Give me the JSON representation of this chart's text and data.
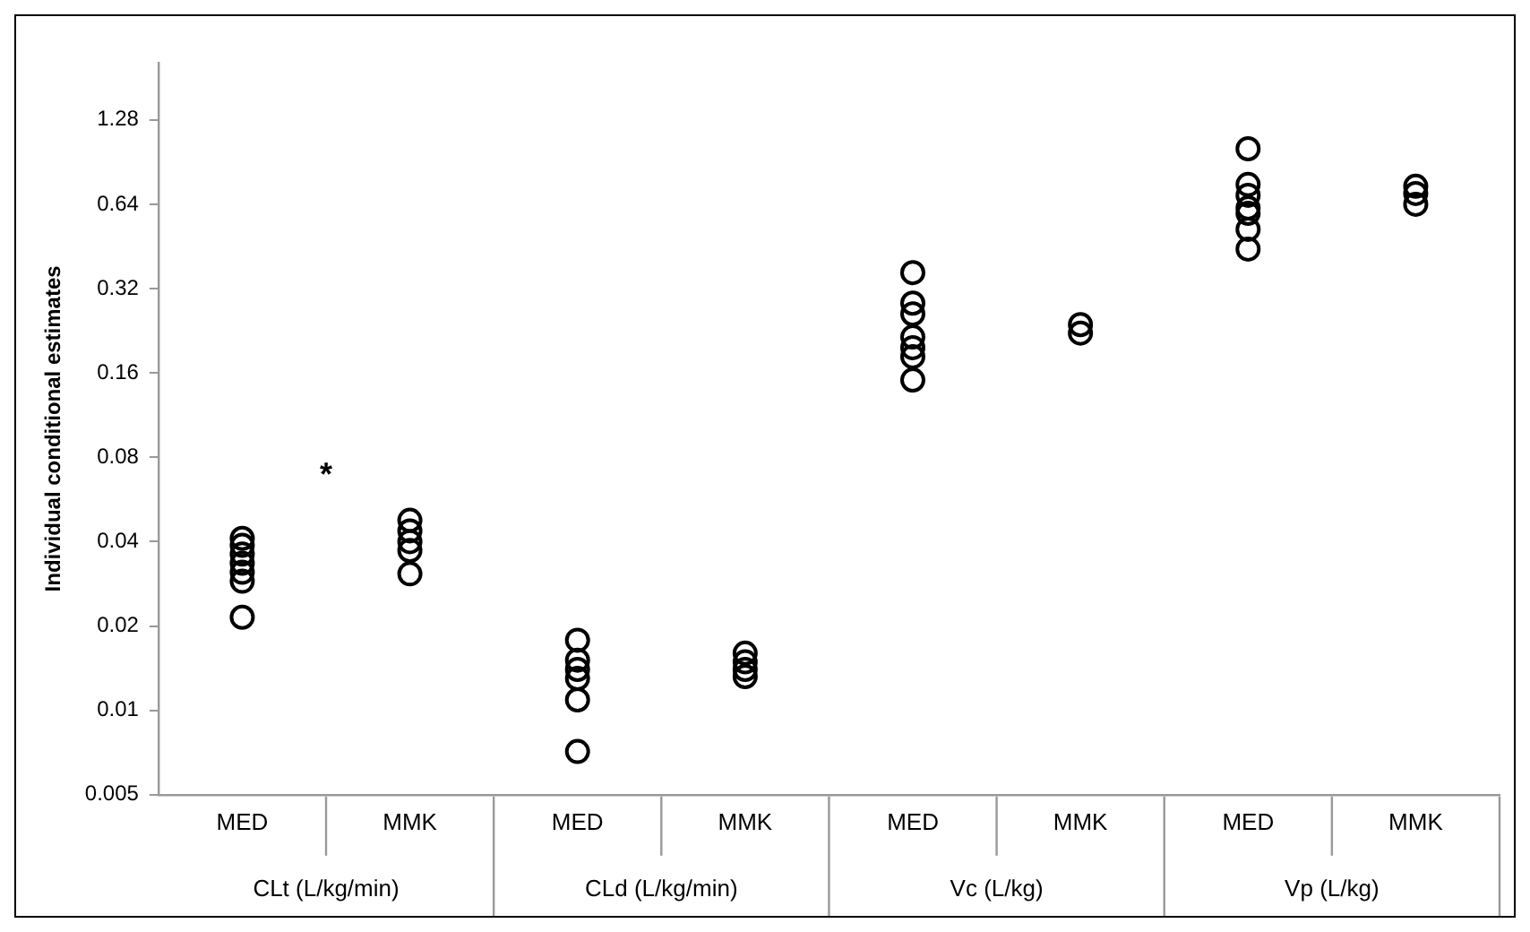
{
  "chart_data": {
    "type": "scatter",
    "ylabel": "Individual conditional estimates",
    "categories": [
      "MED",
      "MMK",
      "MED",
      "MMK",
      "MED",
      "MMK",
      "MED",
      "MMK"
    ],
    "series": [
      {
        "color": "#000000",
        "values": [
          0.0411,
          0.0477,
          0.0178,
          0.016,
          0.365,
          0.238,
          1.01,
          0.742
        ]
      },
      {
        "color": "#000000",
        "values": [
          0.0388,
          0.0437,
          0.0151,
          0.0149,
          0.284,
          0.222,
          0.753,
          0.699
        ]
      },
      {
        "color": "#000000",
        "values": [
          0.0361,
          0.04,
          0.014,
          0.014,
          0.26,
          null,
          0.689,
          0.64
        ]
      },
      {
        "color": "#000000",
        "values": [
          0.0335,
          0.0372,
          0.013,
          0.0132,
          0.215,
          null,
          0.621,
          null
        ]
      },
      {
        "color": "#000000",
        "values": [
          0.0311,
          0.0307,
          0.0109,
          null,
          0.197,
          null,
          0.594,
          null
        ]
      },
      {
        "color": "#000000",
        "values": [
          0.0289,
          null,
          0.00713,
          null,
          0.183,
          null,
          0.521,
          null
        ]
      },
      {
        "color": "#000000",
        "values": [
          0.0215,
          null,
          null,
          null,
          0.151,
          null,
          0.443,
          null
        ]
      }
    ],
    "annotations": [
      "*",
      "CLt (L/kg/min)",
      "CLd (L/kg/min)",
      "Vc (L/kg)",
      "Vp (L/kg)"
    ],
    "log": "y",
    "ylim": [
      0.005,
      2.048
    ],
    "yticks": [
      0.005,
      0.01,
      0.02,
      0.04,
      0.08,
      0.16,
      0.32,
      0.64,
      1.28
    ],
    "grid": false,
    "legend": false,
    "marker": "circle"
  }
}
